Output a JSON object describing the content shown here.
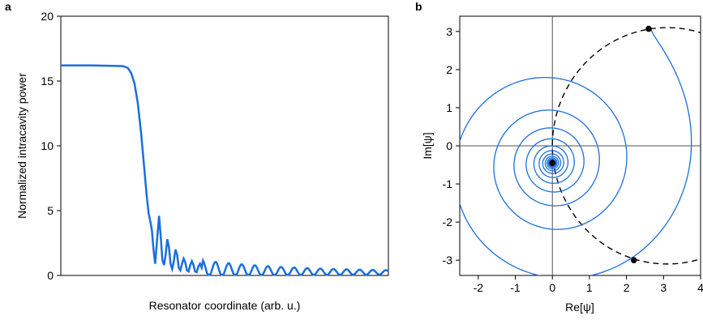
{
  "chart_data": [
    {
      "panel": "a",
      "type": "line",
      "title": "",
      "xlabel": "Resonator coordinate (arb. u.)",
      "ylabel": "Normalized intracavity power",
      "ylim": [
        0,
        20
      ],
      "yticks": [
        "0",
        "5",
        "10",
        "15",
        "20"
      ],
      "xticks": [],
      "grid": false,
      "color": "#1a6fdf",
      "plateau_value": 16.2,
      "series": [
        {
          "description_free": true,
          "x": [
            0,
            0.1,
            0.19,
            0.205,
            0.215,
            0.225,
            0.235,
            0.245,
            0.255,
            0.262,
            0.268,
            0.273,
            0.278,
            0.283,
            0.288,
            0.294,
            0.3,
            0.305,
            0.31,
            0.315,
            0.32,
            0.325,
            0.33,
            0.335,
            0.34,
            0.345,
            0.35,
            0.355,
            0.36,
            0.365,
            0.37,
            0.375,
            0.38,
            0.385,
            0.39,
            0.395,
            0.4,
            0.405,
            0.41,
            0.415,
            0.42,
            0.425,
            0.43
          ],
          "y": [
            16.2,
            16.2,
            16.15,
            16.0,
            15.6,
            14.8,
            13.3,
            11.0,
            8.2,
            6.2,
            4.8,
            4.2,
            3.5,
            2.0,
            0.9,
            2.8,
            4.6,
            3.0,
            1.2,
            0.8,
            1.6,
            2.8,
            2.2,
            0.9,
            0.5,
            1.1,
            2.0,
            1.6,
            0.6,
            0.4,
            0.9,
            1.3,
            1.0,
            0.4,
            0.3,
            0.8,
            1.1,
            0.8,
            0.3,
            0.25,
            0.7,
            0.9,
            0.6
          ]
        }
      ]
    },
    {
      "panel": "b",
      "type": "line",
      "title": "",
      "xlabel": "Re[ψ]",
      "ylabel": "Im[ψ]",
      "xlim": [
        -2.5,
        4
      ],
      "ylim": [
        -3.4,
        3.4
      ],
      "xticks": [
        "-2",
        "-1",
        "0",
        "1",
        "2",
        "3",
        "4"
      ],
      "yticks": [
        "-3",
        "-2",
        "-1",
        "0",
        "1",
        "2",
        "3"
      ],
      "grid": false,
      "spiral_color": "#1a6fdf",
      "circle_color": "#000000",
      "spiral": {
        "start": [
          2.6,
          3.07
        ],
        "center": [
          0.0,
          -0.45
        ],
        "turns": 13
      },
      "dashed_circle": {
        "center": [
          3.1,
          0.0
        ],
        "radius": 3.1
      },
      "markers": [
        {
          "x": 2.6,
          "y": 3.07
        },
        {
          "x": 0.0,
          "y": -0.45
        },
        {
          "x": 2.2,
          "y": -3.0
        }
      ]
    }
  ],
  "labels": {
    "panel_a_letter": "a",
    "panel_b_letter": "b"
  }
}
